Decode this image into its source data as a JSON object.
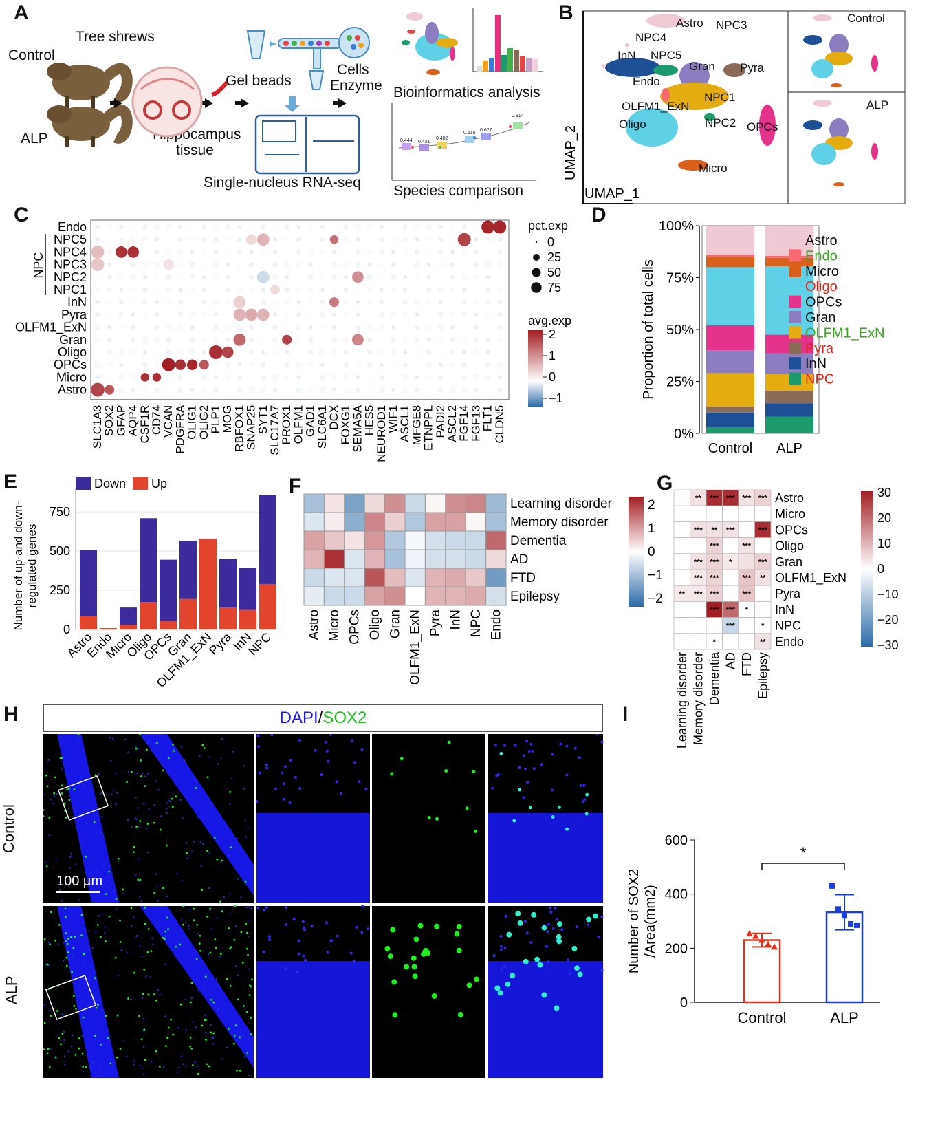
{
  "colors": {
    "Astro": "#efc9d3",
    "Endo": "#f56a70",
    "Micro": "#d8601a",
    "Oligo": "#5ed1e6",
    "OPCs": "#e4338a",
    "Gran": "#8c7cc0",
    "OLFM1_ExN": "#e5ac12",
    "Pyra": "#8c6a58",
    "InN": "#1d4f94",
    "NPC": "#1d9a6c",
    "down": "#3b2b9c",
    "up": "#e3442e",
    "hm_low": "#2b6aa6",
    "hm_high": "#a11e23",
    "ctrl": "#e3321e",
    "alp": "#1a3ee0",
    "nuclei": "#1a1aff",
    "sox2": "#22ee22"
  },
  "panels": {
    "A": "A",
    "B": "B",
    "C": "C",
    "D": "D",
    "E": "E",
    "F": "F",
    "G": "G",
    "H": "H",
    "I": "I"
  },
  "panelA": {
    "tree_shrews": "Tree shrews",
    "control": "Control",
    "alp": "ALP",
    "gel_beads": "Gel beads",
    "cells": "Cells",
    "enzyme": "Enzyme",
    "hippocampus": "Hippocampus",
    "tissue": "tissue",
    "snrna": "Single-nucleus RNA-seq",
    "bioinfo": "Bioinformatics analysis",
    "species": "Species comparison",
    "species_values": [
      "0.444",
      "0.421",
      "0.482",
      "0.615",
      "0.627",
      "0.814"
    ]
  },
  "panelB": {
    "xlabel": "UMAP_1",
    "ylabel": "UMAP_2",
    "control": "Control",
    "alp": "ALP",
    "clusters": [
      "Astro",
      "NPC3",
      "NPC4",
      "InN",
      "NPC5",
      "Gran",
      "Pyra",
      "Endo",
      "NPC1",
      "OLFM1_ExN",
      "Oligo",
      "NPC2",
      "OPCs",
      "Micro"
    ]
  },
  "chart_data": [
    {
      "id": "C",
      "type": "scatter",
      "title": "",
      "genes": [
        "SLC1A3",
        "SOX2",
        "GFAP",
        "AQP4",
        "CSF1R",
        "CD74",
        "VCAN",
        "PDGFRA",
        "OLIG1",
        "OLIG2",
        "PLP1",
        "MOG",
        "RBFOX1",
        "SNAP25",
        "SYT1",
        "SLC17A7",
        "PROX1",
        "OLFM1",
        "GAD1",
        "SLC6A1",
        "DCX",
        "FOXG1",
        "SEMA5A",
        "HES5",
        "NEUROD1",
        "WIF1",
        "ASCL1",
        "MFGE8",
        "ETNPPL",
        "PADI2",
        "ASCL2",
        "FGF14",
        "FGF13",
        "FLT1",
        "CLDN5"
      ],
      "cell_types": [
        "Endo",
        "NPC5",
        "NPC4",
        "NPC3",
        "NPC2",
        "NPC1",
        "InN",
        "Pyra",
        "OLFM1_ExN",
        "Gran",
        "Oligo",
        "OPCs",
        "Micro",
        "Astro"
      ],
      "group_label": "NPC",
      "size_legend": {
        "title": "pct.exp",
        "values": [
          0,
          25,
          50,
          75
        ]
      },
      "color_legend": {
        "title": "avg.exp",
        "values": [
          2,
          1,
          0,
          -1
        ]
      },
      "highlights": [
        {
          "cell": "Endo",
          "gene": "FLT1",
          "pct": 80,
          "avg": 2.3
        },
        {
          "cell": "Endo",
          "gene": "CLDN5",
          "pct": 80,
          "avg": 2.3
        },
        {
          "cell": "NPC5",
          "gene": "SYT1",
          "pct": 70,
          "avg": 0.8
        },
        {
          "cell": "NPC5",
          "gene": "SNAP25",
          "pct": 50,
          "avg": 0.4
        },
        {
          "cell": "NPC5",
          "gene": "FGF14",
          "pct": 80,
          "avg": 2.0
        },
        {
          "cell": "NPC5",
          "gene": "DCX",
          "pct": 30,
          "avg": 1.5
        },
        {
          "cell": "NPC4",
          "gene": "GFAP",
          "pct": 60,
          "avg": 2.2
        },
        {
          "cell": "NPC4",
          "gene": "AQP4",
          "pct": 60,
          "avg": 2.2
        },
        {
          "cell": "NPC4",
          "gene": "SLC1A3",
          "pct": 80,
          "avg": 0.7
        },
        {
          "cell": "NPC3",
          "gene": "SLC1A3",
          "pct": 80,
          "avg": 0.6
        },
        {
          "cell": "NPC3",
          "gene": "VCAN",
          "pct": 50,
          "avg": 0.3
        },
        {
          "cell": "NPC2",
          "gene": "SEMA5A",
          "pct": 60,
          "avg": 1.2
        },
        {
          "cell": "NPC2",
          "gene": "SYT1",
          "pct": 70,
          "avg": -0.6
        },
        {
          "cell": "NPC1",
          "gene": "SLC17A7",
          "pct": 40,
          "avg": 0.4
        },
        {
          "cell": "InN",
          "gene": "DCX",
          "pct": 40,
          "avg": 1.4
        },
        {
          "cell": "InN",
          "gene": "RBFOX1",
          "pct": 70,
          "avg": 0.5
        },
        {
          "cell": "Pyra",
          "gene": "RBFOX1",
          "pct": 70,
          "avg": 0.8
        },
        {
          "cell": "Pyra",
          "gene": "SNAP25",
          "pct": 70,
          "avg": 0.9
        },
        {
          "cell": "Pyra",
          "gene": "SYT1",
          "pct": 70,
          "avg": 0.8
        },
        {
          "cell": "Gran",
          "gene": "RBFOX1",
          "pct": 70,
          "avg": 1.6
        },
        {
          "cell": "Gran",
          "gene": "PROX1",
          "pct": 40,
          "avg": 2.0
        },
        {
          "cell": "Gran",
          "gene": "SEMA5A",
          "pct": 60,
          "avg": 1.3
        },
        {
          "cell": "Oligo",
          "gene": "PLP1",
          "pct": 90,
          "avg": 2.2
        },
        {
          "cell": "Oligo",
          "gene": "MOG",
          "pct": 60,
          "avg": 2.0
        },
        {
          "cell": "OPCs",
          "gene": "VCAN",
          "pct": 80,
          "avg": 2.4
        },
        {
          "cell": "OPCs",
          "gene": "PDGFRA",
          "pct": 50,
          "avg": 2.2
        },
        {
          "cell": "OPCs",
          "gene": "OLIG1",
          "pct": 50,
          "avg": 2.3
        },
        {
          "cell": "OPCs",
          "gene": "OLIG2",
          "pct": 40,
          "avg": 1.8
        },
        {
          "cell": "Micro",
          "gene": "CSF1R",
          "pct": 30,
          "avg": 2.2
        },
        {
          "cell": "Micro",
          "gene": "CD74",
          "pct": 30,
          "avg": 2.2
        },
        {
          "cell": "Astro",
          "gene": "SLC1A3",
          "pct": 90,
          "avg": 2.0
        },
        {
          "cell": "Astro",
          "gene": "SOX2",
          "pct": 40,
          "avg": 1.8
        }
      ]
    },
    {
      "id": "D",
      "type": "bar",
      "title": "",
      "ylabel": "Proportion of total cells",
      "categories": [
        "Control",
        "ALP"
      ],
      "ylim": [
        0,
        100
      ],
      "yticks": [
        "0%",
        "25%",
        "50%",
        "75%",
        "100%"
      ],
      "legend_placement": "right",
      "legend": [
        {
          "name": "Astro",
          "text_color": "#111"
        },
        {
          "name": "Endo",
          "text_color": "#3aa520"
        },
        {
          "name": "Micro",
          "text_color": "#111"
        },
        {
          "name": "Oligo",
          "text_color": "#e0251b"
        },
        {
          "name": "OPCs",
          "text_color": "#111"
        },
        {
          "name": "Gran",
          "text_color": "#111"
        },
        {
          "name": "OLFM1_ExN",
          "text_color": "#3aa520"
        },
        {
          "name": "Pyra",
          "text_color": "#e0251b"
        },
        {
          "name": "InN",
          "text_color": "#111"
        },
        {
          "name": "NPC",
          "text_color": "#e0251b"
        }
      ],
      "series": [
        {
          "name": "NPC",
          "values": [
            3,
            8
          ]
        },
        {
          "name": "InN",
          "values": [
            7,
            6.5
          ]
        },
        {
          "name": "Pyra",
          "values": [
            3,
            6
          ]
        },
        {
          "name": "OLFM1_ExN",
          "values": [
            16,
            8
          ]
        },
        {
          "name": "Gran",
          "values": [
            11,
            10
          ]
        },
        {
          "name": "OPCs",
          "values": [
            12,
            9
          ]
        },
        {
          "name": "Oligo",
          "values": [
            28,
            33
          ]
        },
        {
          "name": "Micro",
          "values": [
            5,
            4
          ]
        },
        {
          "name": "Endo",
          "values": [
            1,
            1
          ]
        },
        {
          "name": "Astro",
          "values": [
            14,
            14.5
          ]
        }
      ]
    },
    {
      "id": "E",
      "type": "bar",
      "title": "",
      "ylabel": "Number of up-and down-regulated genes",
      "ylabel_lines": [
        "Number of up-and down-",
        "regulated genes"
      ],
      "categories": [
        "Astro",
        "Endo",
        "Micro",
        "Oligo",
        "OPCs",
        "Gran",
        "OLFM1_ExN",
        "Pyra",
        "InN",
        "NPC"
      ],
      "ylim": [
        0,
        900
      ],
      "yticks": [
        0,
        250,
        500,
        750
      ],
      "legend_placement": "top",
      "series": [
        {
          "name": "Down",
          "values": [
            420,
            3,
            110,
            535,
            390,
            370,
            5,
            310,
            270,
            570
          ]
        },
        {
          "name": "Up",
          "values": [
            85,
            5,
            30,
            175,
            55,
            195,
            575,
            140,
            125,
            290
          ]
        }
      ]
    },
    {
      "id": "F",
      "type": "heatmap",
      "title": "",
      "x": [
        "Astro",
        "Micro",
        "OPCs",
        "Oligo",
        "Gran",
        "OLFM1_ExN",
        "Pyra",
        "InN",
        "NPC",
        "Endo"
      ],
      "y": [
        "Learning disorder",
        "Memory disorder",
        "Dementia",
        "AD",
        "FTD",
        "Epilepsy"
      ],
      "colorbar": [
        2,
        1,
        0,
        -1,
        -2
      ],
      "values": [
        [
          -1.0,
          0.3,
          -1.5,
          0.4,
          1.2,
          -0.6,
          0.1,
          1.2,
          1.3,
          -1.1
        ],
        [
          -0.4,
          0.2,
          -1.3,
          1.3,
          0.5,
          -0.9,
          1.0,
          1.0,
          0.1,
          -1.0
        ],
        [
          1.0,
          0.6,
          0.3,
          1.1,
          -0.9,
          -0.1,
          -0.5,
          -0.6,
          -0.6,
          1.6
        ],
        [
          0.8,
          2.2,
          -0.4,
          0.8,
          -1.0,
          -0.2,
          -0.5,
          -0.5,
          -0.6,
          0.4
        ],
        [
          -0.6,
          -0.4,
          -0.4,
          1.8,
          0.7,
          -0.4,
          0.8,
          0.9,
          0.6,
          -1.6
        ],
        [
          -0.3,
          -0.6,
          -0.6,
          1.0,
          1.2,
          0.0,
          0.8,
          0.8,
          0.9,
          -0.5
        ]
      ]
    },
    {
      "id": "G",
      "type": "heatmap",
      "title": "",
      "x": [
        "Learning disorder",
        "Memory disorder",
        "Dementia",
        "AD",
        "FTD",
        "Epilepsy"
      ],
      "y": [
        "Astro",
        "Micro",
        "OPCs",
        "Oligo",
        "Gran",
        "OLFM1_ExN",
        "Pyra",
        "InN",
        "NPC",
        "Endo"
      ],
      "colorbar": [
        30,
        20,
        10,
        0,
        -10,
        -20,
        -30
      ],
      "values": [
        [
          0,
          4,
          28,
          28,
          4,
          6
        ],
        [
          0,
          0,
          0,
          0,
          0,
          0
        ],
        [
          0,
          4,
          4,
          4,
          0,
          28
        ],
        [
          0,
          0,
          6,
          0,
          4,
          0
        ],
        [
          0,
          4,
          6,
          3,
          4,
          6
        ],
        [
          0,
          3,
          6,
          0,
          8,
          4
        ],
        [
          3,
          3,
          6,
          0,
          8,
          0
        ],
        [
          0,
          0,
          30,
          20,
          0,
          0
        ],
        [
          0,
          0,
          0,
          -8,
          0,
          0
        ],
        [
          0,
          0,
          0,
          0,
          0,
          4
        ]
      ],
      "stars": [
        [
          "",
          "**",
          "***",
          "***",
          "***",
          "***"
        ],
        [
          "",
          "",
          "",
          "",
          "",
          ""
        ],
        [
          "",
          "***",
          "**",
          "***",
          "",
          "***"
        ],
        [
          "",
          "",
          "***",
          "",
          "***",
          ""
        ],
        [
          "",
          "***",
          "***",
          "*",
          "",
          "***"
        ],
        [
          "",
          "***",
          "***",
          "",
          "***",
          "**"
        ],
        [
          "**",
          "***",
          "***",
          "",
          "***",
          ""
        ],
        [
          "",
          "",
          "***",
          "***",
          "*",
          ""
        ],
        [
          "",
          "",
          "",
          "***",
          "",
          "*"
        ],
        [
          "",
          "",
          "*",
          "",
          "",
          "**"
        ]
      ]
    },
    {
      "id": "I",
      "type": "bar",
      "title": "",
      "ylabel": "Number of SOX2 /Area(mm2)",
      "ylabel_lines": [
        "Number of SOX2",
        "/Area(mm2)"
      ],
      "categories": [
        "Control",
        "ALP"
      ],
      "ylim": [
        0,
        600
      ],
      "yticks": [
        0,
        200,
        400,
        600
      ],
      "values": [
        230,
        333
      ],
      "sd": [
        25,
        65
      ],
      "points": [
        [
          255,
          245,
          230,
          215,
          205
        ],
        [
          430,
          345,
          320,
          290,
          285
        ]
      ],
      "significance": "*"
    }
  ],
  "panelH": {
    "banner_dapi": "DAPI",
    "banner_sep": "/",
    "banner_sox2": "SOX2",
    "row_control": "Control",
    "row_alp": "ALP",
    "scale": "100 µm"
  }
}
